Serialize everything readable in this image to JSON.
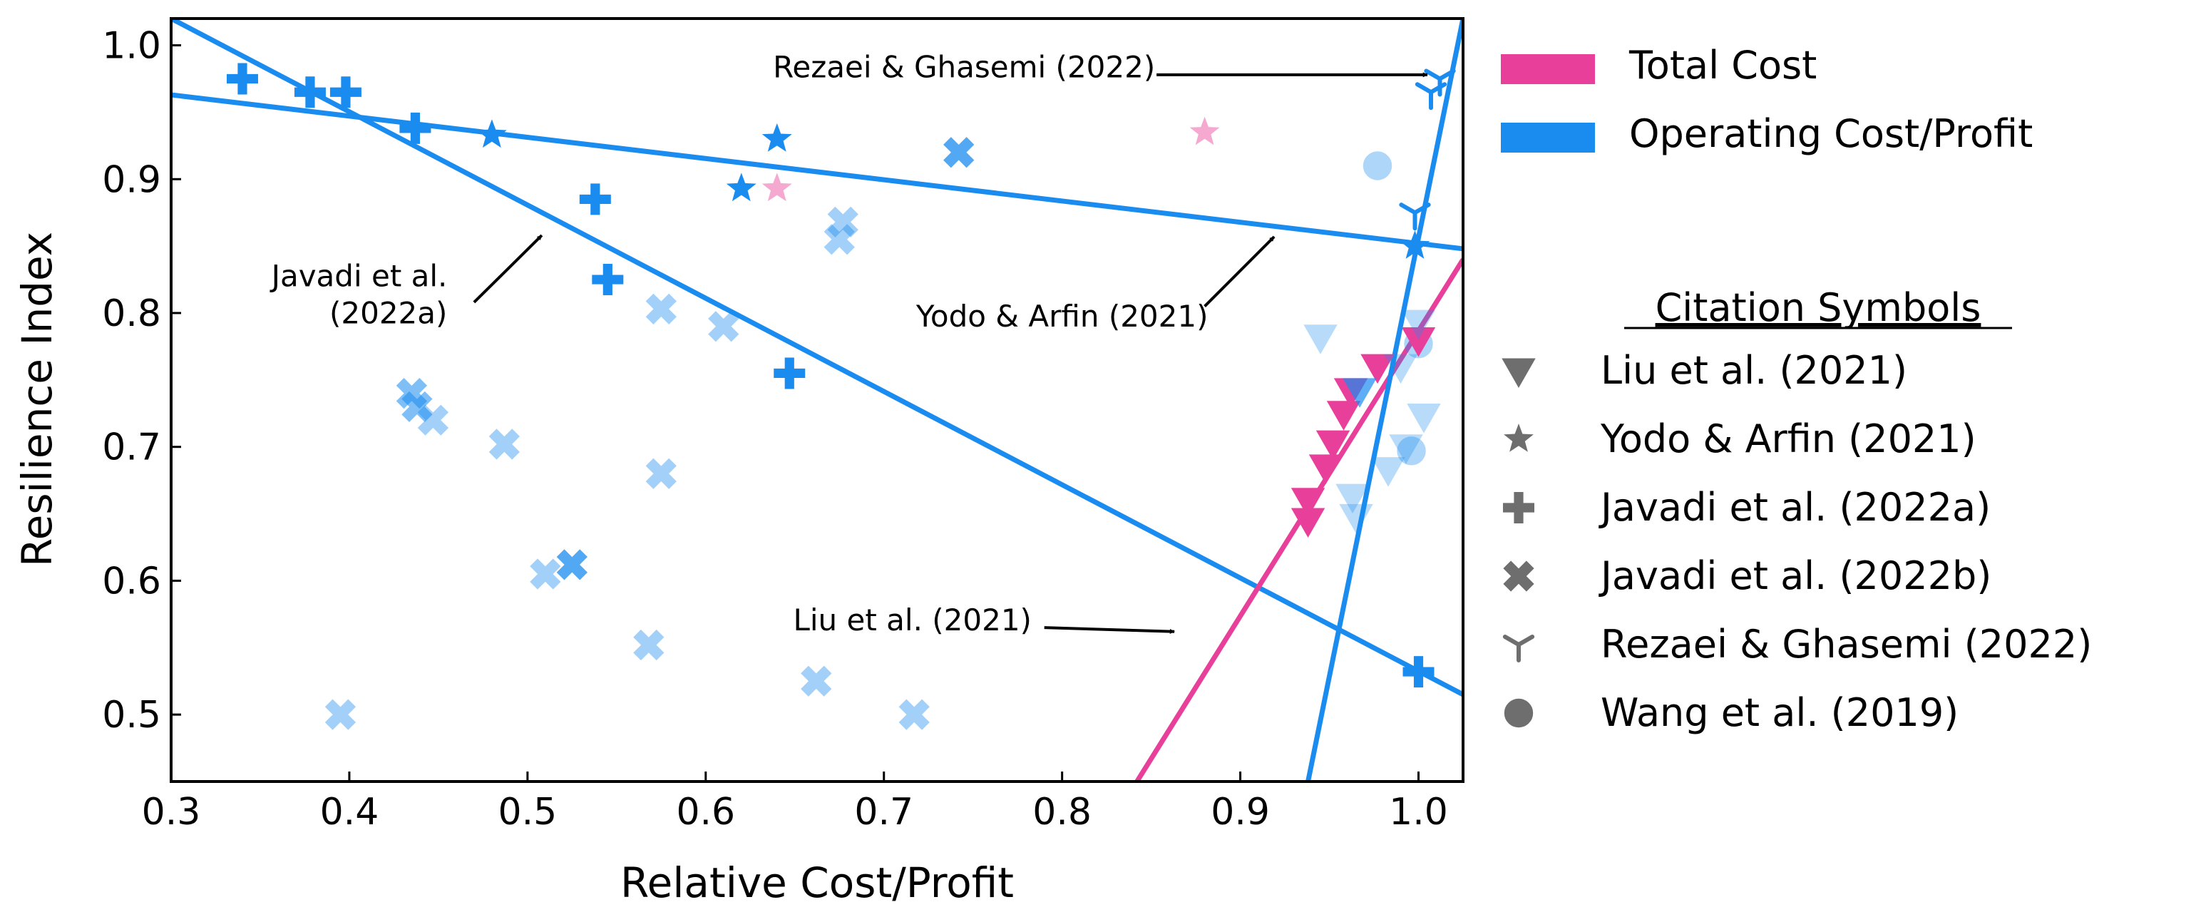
{
  "chart_data": {
    "type": "scatter",
    "xlabel": "Relative Cost/Profit",
    "ylabel": "Resilience Index",
    "xlim": [
      0.3,
      1.025
    ],
    "ylim": [
      0.45,
      1.02
    ],
    "xticks": [
      "0.3",
      "0.4",
      "0.5",
      "0.6",
      "0.7",
      "0.8",
      "0.9",
      "1.0"
    ],
    "yticks": [
      "0.5",
      "0.6",
      "0.7",
      "0.8",
      "0.9",
      "1.0"
    ],
    "colors": {
      "total": "#e8409a",
      "operating": "#1a8cf0"
    },
    "legend": {
      "series_title": "",
      "series": [
        {
          "name": "Total Cost",
          "color": "#e8409a"
        },
        {
          "name": "Operating Cost/Profit",
          "color": "#1a8cf0"
        }
      ],
      "citation_title": "Citation Symbols",
      "citations": [
        {
          "name": "Liu et al. (2021)",
          "marker": "triangle-down"
        },
        {
          "name": "Yodo & Arfin (2021)",
          "marker": "star"
        },
        {
          "name": "Javadi et al. (2022a)",
          "marker": "plus"
        },
        {
          "name": "Javadi et al. (2022b)",
          "marker": "x"
        },
        {
          "name": "Rezaei & Ghasemi (2022)",
          "marker": "tri-down"
        },
        {
          "name": "Wang et al. (2019)",
          "marker": "circle"
        }
      ]
    },
    "lines": [
      {
        "name": "Yodo & Arfin (2021) fit",
        "series": "operating",
        "x": [
          0.3,
          1.025
        ],
        "y": [
          0.963,
          0.848
        ]
      },
      {
        "name": "Javadi et al. (2022a) fit",
        "series": "operating",
        "x": [
          0.3,
          1.025
        ],
        "y": [
          1.02,
          0.515
        ]
      },
      {
        "name": "Liu et al. (2021) fit",
        "series": "total",
        "x": [
          0.842,
          1.025
        ],
        "y": [
          0.45,
          0.84
        ]
      },
      {
        "name": "Rezaei & Ghasemi (2022) fit",
        "series": "operating",
        "x": [
          0.938,
          1.025
        ],
        "y": [
          0.45,
          1.02
        ]
      }
    ],
    "points": [
      {
        "x": 0.34,
        "y": 0.975,
        "marker": "plus",
        "series": "operating",
        "alpha": 1
      },
      {
        "x": 0.378,
        "y": 0.965,
        "marker": "plus",
        "series": "operating",
        "alpha": 1
      },
      {
        "x": 0.398,
        "y": 0.965,
        "marker": "plus",
        "series": "operating",
        "alpha": 1
      },
      {
        "x": 0.437,
        "y": 0.938,
        "marker": "plus",
        "series": "operating",
        "alpha": 1
      },
      {
        "x": 0.538,
        "y": 0.885,
        "marker": "plus",
        "series": "operating",
        "alpha": 1
      },
      {
        "x": 0.545,
        "y": 0.825,
        "marker": "plus",
        "series": "operating",
        "alpha": 1
      },
      {
        "x": 0.647,
        "y": 0.755,
        "marker": "plus",
        "series": "operating",
        "alpha": 1
      },
      {
        "x": 1.0,
        "y": 0.532,
        "marker": "plus",
        "series": "operating",
        "alpha": 1
      },
      {
        "x": 0.48,
        "y": 0.933,
        "marker": "star",
        "series": "operating",
        "alpha": 1
      },
      {
        "x": 0.62,
        "y": 0.893,
        "marker": "star",
        "series": "operating",
        "alpha": 1
      },
      {
        "x": 0.64,
        "y": 0.93,
        "marker": "star",
        "series": "operating",
        "alpha": 1
      },
      {
        "x": 0.998,
        "y": 0.85,
        "marker": "star",
        "series": "operating",
        "alpha": 1
      },
      {
        "x": 0.64,
        "y": 0.893,
        "marker": "star",
        "series": "total",
        "alpha": 0.45
      },
      {
        "x": 0.88,
        "y": 0.935,
        "marker": "star",
        "series": "total",
        "alpha": 0.45
      },
      {
        "x": 0.742,
        "y": 0.92,
        "marker": "x",
        "series": "operating",
        "alpha": 0.75
      },
      {
        "x": 0.677,
        "y": 0.868,
        "marker": "x",
        "series": "operating",
        "alpha": 0.4
      },
      {
        "x": 0.675,
        "y": 0.855,
        "marker": "x",
        "series": "operating",
        "alpha": 0.4
      },
      {
        "x": 0.575,
        "y": 0.803,
        "marker": "x",
        "series": "operating",
        "alpha": 0.4
      },
      {
        "x": 0.61,
        "y": 0.79,
        "marker": "x",
        "series": "operating",
        "alpha": 0.4
      },
      {
        "x": 0.435,
        "y": 0.74,
        "marker": "x",
        "series": "operating",
        "alpha": 0.55
      },
      {
        "x": 0.438,
        "y": 0.73,
        "marker": "x",
        "series": "operating",
        "alpha": 0.55
      },
      {
        "x": 0.447,
        "y": 0.72,
        "marker": "x",
        "series": "operating",
        "alpha": 0.4
      },
      {
        "x": 0.487,
        "y": 0.702,
        "marker": "x",
        "series": "operating",
        "alpha": 0.4
      },
      {
        "x": 0.575,
        "y": 0.68,
        "marker": "x",
        "series": "operating",
        "alpha": 0.4
      },
      {
        "x": 0.51,
        "y": 0.605,
        "marker": "x",
        "series": "operating",
        "alpha": 0.4
      },
      {
        "x": 0.525,
        "y": 0.612,
        "marker": "x",
        "series": "operating",
        "alpha": 0.75
      },
      {
        "x": 0.568,
        "y": 0.552,
        "marker": "x",
        "series": "operating",
        "alpha": 0.4
      },
      {
        "x": 0.662,
        "y": 0.525,
        "marker": "x",
        "series": "operating",
        "alpha": 0.4
      },
      {
        "x": 0.395,
        "y": 0.5,
        "marker": "x",
        "series": "operating",
        "alpha": 0.4
      },
      {
        "x": 0.717,
        "y": 0.5,
        "marker": "x",
        "series": "operating",
        "alpha": 0.4
      },
      {
        "x": 1.007,
        "y": 0.965,
        "marker": "tri-down",
        "series": "operating",
        "alpha": 1
      },
      {
        "x": 1.012,
        "y": 0.975,
        "marker": "tri-down",
        "series": "operating",
        "alpha": 1
      },
      {
        "x": 0.998,
        "y": 0.875,
        "marker": "tri-down",
        "series": "operating",
        "alpha": 1
      },
      {
        "x": 0.977,
        "y": 0.91,
        "marker": "circle",
        "series": "operating",
        "alpha": 0.35
      },
      {
        "x": 0.996,
        "y": 0.697,
        "marker": "circle",
        "series": "operating",
        "alpha": 0.35
      },
      {
        "x": 1.0,
        "y": 0.777,
        "marker": "circle",
        "series": "operating",
        "alpha": 0.35
      },
      {
        "x": 0.938,
        "y": 0.66,
        "marker": "triangle-down",
        "series": "total",
        "alpha": 1
      },
      {
        "x": 0.938,
        "y": 0.645,
        "marker": "triangle-down",
        "series": "total",
        "alpha": 1
      },
      {
        "x": 0.948,
        "y": 0.685,
        "marker": "triangle-down",
        "series": "total",
        "alpha": 1
      },
      {
        "x": 0.952,
        "y": 0.703,
        "marker": "triangle-down",
        "series": "total",
        "alpha": 1
      },
      {
        "x": 0.958,
        "y": 0.725,
        "marker": "triangle-down",
        "series": "total",
        "alpha": 1
      },
      {
        "x": 0.962,
        "y": 0.742,
        "marker": "triangle-down",
        "series": "total",
        "alpha": 1
      },
      {
        "x": 0.977,
        "y": 0.76,
        "marker": "triangle-down",
        "series": "total",
        "alpha": 1
      },
      {
        "x": 1.0,
        "y": 0.78,
        "marker": "triangle-down",
        "series": "total",
        "alpha": 1
      },
      {
        "x": 0.967,
        "y": 0.742,
        "marker": "triangle-down",
        "series": "operating",
        "alpha": 0.7
      },
      {
        "x": 0.945,
        "y": 0.782,
        "marker": "triangle-down",
        "series": "operating",
        "alpha": 0.3
      },
      {
        "x": 0.99,
        "y": 0.76,
        "marker": "triangle-down",
        "series": "operating",
        "alpha": 0.3
      },
      {
        "x": 1.003,
        "y": 0.723,
        "marker": "triangle-down",
        "series": "operating",
        "alpha": 0.3
      },
      {
        "x": 0.993,
        "y": 0.7,
        "marker": "triangle-down",
        "series": "operating",
        "alpha": 0.3
      },
      {
        "x": 0.983,
        "y": 0.683,
        "marker": "triangle-down",
        "series": "operating",
        "alpha": 0.3
      },
      {
        "x": 0.963,
        "y": 0.663,
        "marker": "triangle-down",
        "series": "operating",
        "alpha": 0.3
      },
      {
        "x": 0.965,
        "y": 0.648,
        "marker": "triangle-down",
        "series": "operating",
        "alpha": 0.3
      },
      {
        "x": 1.0,
        "y": 0.793,
        "marker": "triangle-down",
        "series": "operating",
        "alpha": 0.3
      }
    ],
    "annotations": [
      {
        "text": "Rezaei & Ghasemi (2022)",
        "lines": [
          "Rezaei & Ghasemi (2022)"
        ],
        "text_x": 0.745,
        "text_y": 0.976,
        "anchor": "middle",
        "arrow_from": [
          0.853,
          0.978
        ],
        "arrow_to": [
          1.005,
          0.978
        ]
      },
      {
        "text": "Javadi et al. (2022a)",
        "lines": [
          "Javadi et al.",
          "(2022a)"
        ],
        "text_x": 0.455,
        "text_y": 0.82,
        "anchor": "end",
        "arrow_from": [
          0.47,
          0.808
        ],
        "arrow_to": [
          0.508,
          0.858
        ]
      },
      {
        "text": "Yodo & Arfin (2021)",
        "lines": [
          "Yodo & Arfin (2021)"
        ],
        "text_x": 0.8,
        "text_y": 0.79,
        "anchor": "middle",
        "arrow_from": [
          0.88,
          0.805
        ],
        "arrow_to": [
          0.919,
          0.857
        ]
      },
      {
        "text": "Liu et al. (2021)",
        "lines": [
          "Liu et al. (2021)"
        ],
        "text_x": 0.716,
        "text_y": 0.563,
        "anchor": "middle",
        "arrow_from": [
          0.79,
          0.565
        ],
        "arrow_to": [
          0.863,
          0.562
        ]
      }
    ]
  }
}
